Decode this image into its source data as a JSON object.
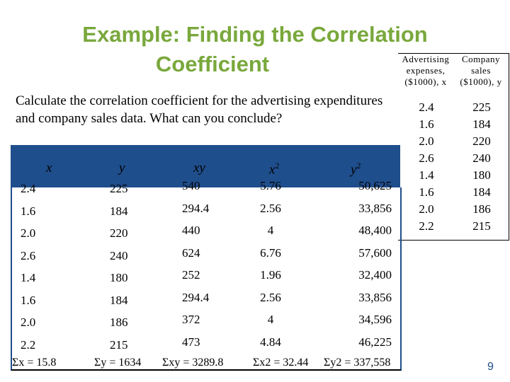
{
  "slide": {
    "title_line1": "Example: Finding the Correlation",
    "title_line2": "Coefficient",
    "prompt": "Calculate the correlation coefficient for the advertising expenditures and company sales data. What can you conclude?",
    "page_number": "9"
  },
  "side_table": {
    "headers": [
      "Advertising expenses, ($1000), x",
      "Company sales ($1000), y"
    ],
    "x": [
      "2.4",
      "1.6",
      "2.0",
      "2.6",
      "1.4",
      "1.6",
      "2.0",
      "2.2"
    ],
    "y": [
      "225",
      "184",
      "220",
      "240",
      "180",
      "184",
      "186",
      "215"
    ]
  },
  "main_table": {
    "headers": [
      "x",
      "y",
      "xy",
      "x",
      "y"
    ],
    "header_sup": [
      "",
      "",
      "",
      "2",
      "2"
    ],
    "rows": [
      [
        "2.4",
        "225",
        "540",
        "5.76",
        "50,625"
      ],
      [
        "1.6",
        "184",
        "294.4",
        "2.56",
        "33,856"
      ],
      [
        "2.0",
        "220",
        "440",
        "4",
        "48,400"
      ],
      [
        "2.6",
        "240",
        "624",
        "6.76",
        "57,600"
      ],
      [
        "1.4",
        "180",
        "252",
        "1.96",
        "32,400"
      ],
      [
        "1.6",
        "184",
        "294.4",
        "2.56",
        "33,856"
      ],
      [
        "2.0",
        "186",
        "372",
        "4",
        "34,596"
      ],
      [
        "2.2",
        "215",
        "473",
        "4.84",
        "46,225"
      ]
    ],
    "sums": [
      "Σx = 15.8",
      "Σy = 1634",
      "Σxy = 3289.8",
      "Σx2 = 32.44",
      "Σy2 = 337,558"
    ]
  },
  "colors": {
    "title": "#79a83c",
    "band": "#1f4e8c",
    "page_number": "#1f4e8c"
  }
}
